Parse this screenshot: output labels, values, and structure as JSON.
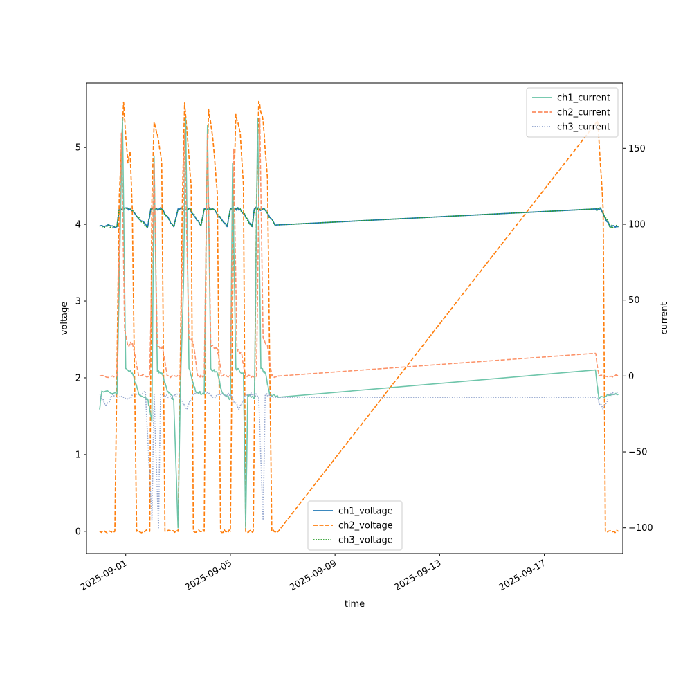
{
  "chart_data": {
    "type": "line",
    "xlabel": "time",
    "ylabel_left": "voltage",
    "ylabel_right": "current",
    "x_range": [
      "2025-08-30T12:00",
      "2025-09-20T00:00"
    ],
    "x_ticks": [
      "2025-09-01",
      "2025-09-05",
      "2025-09-09",
      "2025-09-13",
      "2025-09-17"
    ],
    "y_left_range": [
      -0.29,
      5.84
    ],
    "y_left_ticks": [
      0,
      1,
      2,
      3,
      4,
      5
    ],
    "y_right_range": [
      -117,
      193
    ],
    "y_right_ticks": [
      -100,
      -50,
      0,
      50,
      100,
      150
    ],
    "legend_left": {
      "placement": "lower-center",
      "entries": [
        "ch1_voltage",
        "ch2_voltage",
        "ch3_voltage"
      ]
    },
    "legend_right": {
      "placement": "upper-right",
      "entries": [
        "ch1_current",
        "ch2_current",
        "ch3_current"
      ]
    },
    "colors": {
      "ch1_voltage": "#1f77b4",
      "ch2_voltage": "#ff7f0e",
      "ch3_voltage": "#2ca02c",
      "ch1_current": "#66c2a5",
      "ch2_current": "#fc8d62",
      "ch3_current": "#8da0cb"
    },
    "cycles": [
      [
        "2025-08-31T17:00",
        "2025-09-01T04:00",
        "2025-09-01T18:00"
      ],
      [
        "2025-09-01T22:00",
        "2025-09-02T09:00",
        "2025-09-02T22:00"
      ],
      [
        "2025-09-03T00:00",
        "2025-09-03T11:00",
        "2025-09-04T01:00"
      ],
      [
        "2025-09-03T22:00",
        "2025-09-04T08:00",
        "2025-09-04T22:00"
      ],
      [
        "2025-09-04T22:00",
        "2025-09-05T09:00",
        "2025-09-05T21:00"
      ],
      [
        "2025-09-05T20:00",
        "2025-09-06T07:00",
        "2025-09-06T16:00"
      ],
      [
        "2025-09-19T00:00",
        "2025-09-19T05:00",
        "2025-09-19T12:00"
      ]
    ],
    "series": [
      {
        "name": "ch1_voltage",
        "axis": "left",
        "style": "solid",
        "points": [
          [
            "2025-08-31T00:00",
            3.98
          ],
          [
            "2025-08-31T16:00",
            3.97
          ],
          [
            "2025-08-31T18:00",
            4.2
          ],
          [
            "2025-09-01T04:00",
            4.2
          ],
          [
            "2025-09-01T20:00",
            3.96
          ],
          [
            "2025-09-01T23:00",
            4.2
          ],
          [
            "2025-09-02T09:00",
            4.2
          ],
          [
            "2025-09-02T20:00",
            3.97
          ],
          [
            "2025-09-03T00:00",
            4.2
          ],
          [
            "2025-09-03T11:00",
            4.2
          ],
          [
            "2025-09-03T21:00",
            3.98
          ],
          [
            "2025-09-04T00:00",
            4.2
          ],
          [
            "2025-09-04T08:00",
            4.2
          ],
          [
            "2025-09-04T21:00",
            3.97
          ],
          [
            "2025-09-05T00:00",
            4.2
          ],
          [
            "2025-09-05T09:00",
            4.2
          ],
          [
            "2025-09-05T20:00",
            3.97
          ],
          [
            "2025-09-05T22:00",
            4.2
          ],
          [
            "2025-09-06T07:00",
            4.2
          ],
          [
            "2025-09-06T17:00",
            3.99
          ],
          [
            "2025-09-18T23:00",
            4.2
          ],
          [
            "2025-09-19T04:00",
            4.2
          ],
          [
            "2025-09-19T12:00",
            3.97
          ],
          [
            "2025-09-19T20:00",
            3.97
          ]
        ]
      },
      {
        "name": "ch2_voltage",
        "axis": "left",
        "style": "dashed",
        "points": [
          [
            "2025-08-31T00:00",
            0.0
          ],
          [
            "2025-08-31T14:00",
            0.0
          ],
          [
            "2025-08-31T18:00",
            4.35
          ],
          [
            "2025-08-31T22:00",
            5.59
          ],
          [
            "2025-09-01T00:00",
            5.15
          ],
          [
            "2025-09-01T02:00",
            4.8
          ],
          [
            "2025-09-01T04:00",
            4.95
          ],
          [
            "2025-09-01T06:00",
            4.2
          ],
          [
            "2025-09-01T10:00",
            0.0
          ],
          [
            "2025-09-01T22:00",
            0.0
          ],
          [
            "2025-09-02T00:00",
            4.3
          ],
          [
            "2025-09-02T02:00",
            5.33
          ],
          [
            "2025-09-02T06:00",
            5.1
          ],
          [
            "2025-09-02T09:00",
            4.8
          ],
          [
            "2025-09-02T12:00",
            0.0
          ],
          [
            "2025-09-03T00:00",
            0.0
          ],
          [
            "2025-09-03T04:00",
            4.35
          ],
          [
            "2025-09-03T06:00",
            5.58
          ],
          [
            "2025-09-03T08:00",
            5.25
          ],
          [
            "2025-09-03T12:00",
            4.5
          ],
          [
            "2025-09-03T14:00",
            0.0
          ],
          [
            "2025-09-04T00:00",
            0.0
          ],
          [
            "2025-09-04T02:00",
            4.35
          ],
          [
            "2025-09-04T04:00",
            5.5
          ],
          [
            "2025-09-04T08:00",
            5.1
          ],
          [
            "2025-09-04T12:00",
            4.4
          ],
          [
            "2025-09-04T15:00",
            0.0
          ],
          [
            "2025-09-05T00:00",
            0.0
          ],
          [
            "2025-09-05T03:00",
            4.3
          ],
          [
            "2025-09-05T05:00",
            5.43
          ],
          [
            "2025-09-05T09:00",
            5.2
          ],
          [
            "2025-09-05T12:00",
            4.5
          ],
          [
            "2025-09-05T14:00",
            0.0
          ],
          [
            "2025-09-05T21:00",
            0.0
          ],
          [
            "2025-09-06T00:00",
            4.3
          ],
          [
            "2025-09-06T02:00",
            5.6
          ],
          [
            "2025-09-06T06:00",
            5.35
          ],
          [
            "2025-09-06T10:00",
            4.6
          ],
          [
            "2025-09-06T14:00",
            0.0
          ],
          [
            "2025-09-06T20:00",
            0.0
          ],
          [
            "2025-09-19T01:00",
            5.35
          ],
          [
            "2025-09-19T06:00",
            4.2
          ],
          [
            "2025-09-19T08:00",
            0.0
          ],
          [
            "2025-09-19T20:00",
            0.0
          ]
        ]
      },
      {
        "name": "ch3_voltage",
        "axis": "left",
        "style": "dotted",
        "points": [
          [
            "2025-08-31T00:00",
            3.98
          ],
          [
            "2025-08-31T16:00",
            3.97
          ],
          [
            "2025-08-31T18:00",
            4.2
          ],
          [
            "2025-09-01T04:00",
            4.2
          ],
          [
            "2025-09-01T20:00",
            3.96
          ],
          [
            "2025-09-01T23:00",
            4.2
          ],
          [
            "2025-09-02T09:00",
            4.2
          ],
          [
            "2025-09-02T20:00",
            3.97
          ],
          [
            "2025-09-03T00:00",
            4.2
          ],
          [
            "2025-09-03T11:00",
            4.2
          ],
          [
            "2025-09-03T21:00",
            3.98
          ],
          [
            "2025-09-04T00:00",
            4.2
          ],
          [
            "2025-09-04T08:00",
            4.2
          ],
          [
            "2025-09-04T21:00",
            3.97
          ],
          [
            "2025-09-05T00:00",
            4.2
          ],
          [
            "2025-09-05T09:00",
            4.2
          ],
          [
            "2025-09-05T20:00",
            3.97
          ],
          [
            "2025-09-05T22:00",
            4.2
          ],
          [
            "2025-09-06T07:00",
            4.2
          ],
          [
            "2025-09-06T17:00",
            3.99
          ],
          [
            "2025-09-18T23:00",
            4.2
          ],
          [
            "2025-09-19T04:00",
            4.2
          ],
          [
            "2025-09-19T12:00",
            3.97
          ],
          [
            "2025-09-19T20:00",
            3.97
          ]
        ]
      },
      {
        "name": "ch1_current",
        "axis": "right",
        "style": "solid",
        "points": [
          [
            "2025-08-31T00:00",
            -22
          ],
          [
            "2025-08-31T02:00",
            -10
          ],
          [
            "2025-08-31T16:00",
            -12
          ],
          [
            "2025-08-31T18:00",
            60
          ],
          [
            "2025-08-31T21:00",
            170
          ],
          [
            "2025-09-01T00:00",
            5
          ],
          [
            "2025-09-01T06:00",
            2
          ],
          [
            "2025-09-01T12:00",
            -12
          ],
          [
            "2025-09-01T20:00",
            -15
          ],
          [
            "2025-09-02T00:00",
            -30
          ],
          [
            "2025-09-02T02:00",
            145
          ],
          [
            "2025-09-02T05:00",
            3
          ],
          [
            "2025-09-02T09:00",
            2
          ],
          [
            "2025-09-02T14:00",
            -10
          ],
          [
            "2025-09-02T20:00",
            -15
          ],
          [
            "2025-09-03T00:00",
            -100
          ],
          [
            "2025-09-03T02:00",
            -12
          ],
          [
            "2025-09-03T05:00",
            60
          ],
          [
            "2025-09-03T07:00",
            170
          ],
          [
            "2025-09-03T10:00",
            5
          ],
          [
            "2025-09-03T16:00",
            -10
          ],
          [
            "2025-09-04T00:00",
            -12
          ],
          [
            "2025-09-04T03:00",
            165
          ],
          [
            "2025-09-04T06:00",
            5
          ],
          [
            "2025-09-04T12:00",
            2
          ],
          [
            "2025-09-04T16:00",
            -10
          ],
          [
            "2025-09-05T00:00",
            -15
          ],
          [
            "2025-09-05T02:00",
            140
          ],
          [
            "2025-09-05T05:00",
            5
          ],
          [
            "2025-09-05T12:00",
            2
          ],
          [
            "2025-09-05T14:00",
            -100
          ],
          [
            "2025-09-05T16:00",
            -12
          ],
          [
            "2025-09-05T22:00",
            -15
          ],
          [
            "2025-09-06T01:00",
            170
          ],
          [
            "2025-09-06T04:00",
            5
          ],
          [
            "2025-09-06T08:00",
            2
          ],
          [
            "2025-09-06T12:00",
            -12
          ],
          [
            "2025-09-06T20:00",
            -14
          ],
          [
            "2025-09-18T23:00",
            4
          ],
          [
            "2025-09-19T02:00",
            -15
          ],
          [
            "2025-09-19T10:00",
            -12
          ],
          [
            "2025-09-19T20:00",
            -12
          ]
        ]
      },
      {
        "name": "ch2_current",
        "axis": "right",
        "style": "dashed",
        "points": [
          [
            "2025-08-31T00:00",
            0
          ],
          [
            "2025-08-31T16:00",
            0
          ],
          [
            "2025-08-31T20:00",
            160
          ],
          [
            "2025-08-31T23:00",
            30
          ],
          [
            "2025-09-01T02:00",
            20
          ],
          [
            "2025-09-01T06:00",
            22
          ],
          [
            "2025-09-01T12:00",
            0
          ],
          [
            "2025-09-01T22:00",
            0
          ],
          [
            "2025-09-02T02:00",
            140
          ],
          [
            "2025-09-02T05:00",
            20
          ],
          [
            "2025-09-02T10:00",
            18
          ],
          [
            "2025-09-02T14:00",
            0
          ],
          [
            "2025-09-03T02:00",
            0
          ],
          [
            "2025-09-03T06:00",
            160
          ],
          [
            "2025-09-03T10:00",
            25
          ],
          [
            "2025-09-03T14:00",
            22
          ],
          [
            "2025-09-03T18:00",
            0
          ],
          [
            "2025-09-04T00:00",
            0
          ],
          [
            "2025-09-04T03:00",
            160
          ],
          [
            "2025-09-04T06:00",
            20
          ],
          [
            "2025-09-04T12:00",
            18
          ],
          [
            "2025-09-04T16:00",
            0
          ],
          [
            "2025-09-05T00:00",
            0
          ],
          [
            "2025-09-05T03:00",
            150
          ],
          [
            "2025-09-05T06:00",
            18
          ],
          [
            "2025-09-05T10:00",
            15
          ],
          [
            "2025-09-05T14:00",
            0
          ],
          [
            "2025-09-06T00:00",
            0
          ],
          [
            "2025-09-06T03:00",
            170
          ],
          [
            "2025-09-06T06:00",
            25
          ],
          [
            "2025-09-06T10:00",
            20
          ],
          [
            "2025-09-06T14:00",
            0
          ],
          [
            "2025-09-06T20:00",
            0
          ],
          [
            "2025-09-18T23:00",
            15
          ],
          [
            "2025-09-19T02:00",
            0
          ],
          [
            "2025-09-19T20:00",
            0
          ]
        ]
      },
      {
        "name": "ch3_current",
        "axis": "right",
        "style": "dotted",
        "points": [
          [
            "2025-08-31T00:00",
            -12
          ],
          [
            "2025-08-31T06:00",
            -20
          ],
          [
            "2025-08-31T12:00",
            -12
          ],
          [
            "2025-09-01T00:00",
            -15
          ],
          [
            "2025-09-01T10:00",
            -12
          ],
          [
            "2025-09-01T18:00",
            -10
          ],
          [
            "2025-09-02T00:00",
            -95
          ],
          [
            "2025-09-02T02:00",
            -12
          ],
          [
            "2025-09-02T06:00",
            -100
          ],
          [
            "2025-09-02T08:00",
            -12
          ],
          [
            "2025-09-02T16:00",
            -14
          ],
          [
            "2025-09-03T00:00",
            -12
          ],
          [
            "2025-09-03T08:00",
            -22
          ],
          [
            "2025-09-03T14:00",
            -12
          ],
          [
            "2025-09-04T00:00",
            -10
          ],
          [
            "2025-09-04T08:00",
            -14
          ],
          [
            "2025-09-04T16:00",
            -12
          ],
          [
            "2025-09-05T00:00",
            -12
          ],
          [
            "2025-09-05T08:00",
            -22
          ],
          [
            "2025-09-05T14:00",
            -12
          ],
          [
            "2025-09-05T22:00",
            -12
          ],
          [
            "2025-09-06T02:00",
            -14
          ],
          [
            "2025-09-06T06:00",
            -95
          ],
          [
            "2025-09-06T08:00",
            -12
          ],
          [
            "2025-09-06T14:00",
            -14
          ],
          [
            "2025-09-19T00:00",
            -14
          ],
          [
            "2025-09-19T06:00",
            -22
          ],
          [
            "2025-09-19T12:00",
            -12
          ],
          [
            "2025-09-19T20:00",
            -12
          ]
        ]
      }
    ]
  }
}
